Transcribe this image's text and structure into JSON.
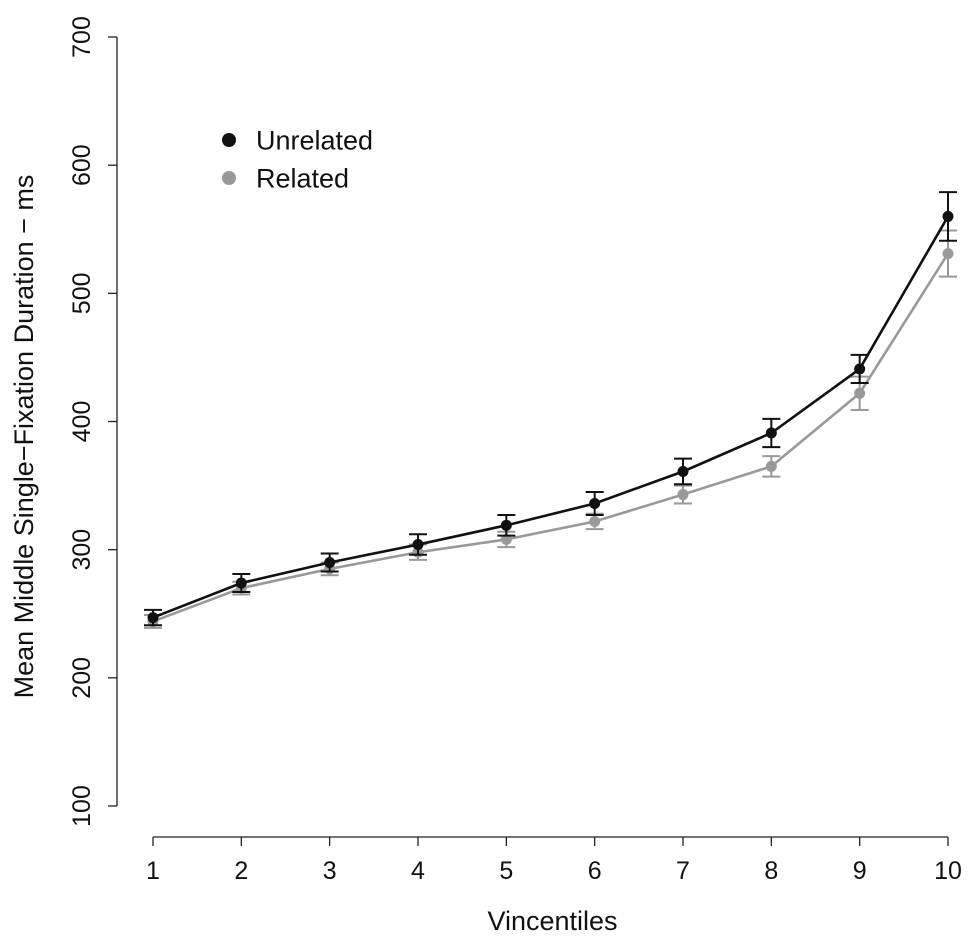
{
  "chart_data": {
    "type": "line",
    "xlabel": "Vincentiles",
    "ylabel": "Mean Middle Single−Fixation Duration − ms",
    "x": [
      1,
      2,
      3,
      4,
      5,
      6,
      7,
      8,
      9,
      10
    ],
    "xticks": [
      "1",
      "2",
      "3",
      "4",
      "5",
      "6",
      "7",
      "8",
      "9",
      "10"
    ],
    "ylim": [
      100,
      700
    ],
    "yticks": [
      "100",
      "200",
      "300",
      "400",
      "500",
      "600",
      "700"
    ],
    "legend_position": "top-left",
    "grid": false,
    "series": [
      {
        "name": "Unrelated",
        "color": "#111111",
        "values": [
          247,
          274,
          290,
          304,
          319,
          336,
          361,
          391,
          441,
          560
        ],
        "error": [
          6,
          7,
          7,
          8,
          8,
          9,
          10,
          11,
          11,
          19
        ]
      },
      {
        "name": "Related",
        "color": "#999999",
        "values": [
          244,
          270,
          285,
          298,
          308,
          322,
          343,
          365,
          422,
          531
        ],
        "error": [
          5,
          5,
          5,
          6,
          6,
          6,
          7,
          8,
          13,
          18
        ]
      }
    ]
  }
}
